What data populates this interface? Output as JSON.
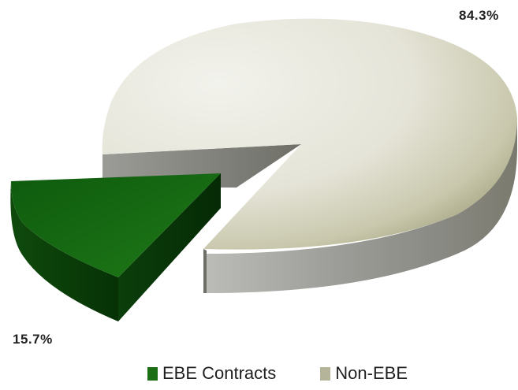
{
  "chart_data": {
    "type": "pie",
    "title": "",
    "slices": [
      {
        "label": "EBE Contracts",
        "value": 15.7,
        "display": "15.7%",
        "color": "#1b6e14"
      },
      {
        "label": "Non-EBE",
        "value": 84.3,
        "display": "84.3%",
        "color": "#d9d8c8"
      }
    ],
    "exploded": "EBE Contracts",
    "style": "3d",
    "legend_position": "bottom"
  },
  "legend": [
    {
      "label": "EBE Contracts",
      "color": "#1b6e14"
    },
    {
      "label": "Non-EBE",
      "color": "#b4b49a"
    }
  ]
}
